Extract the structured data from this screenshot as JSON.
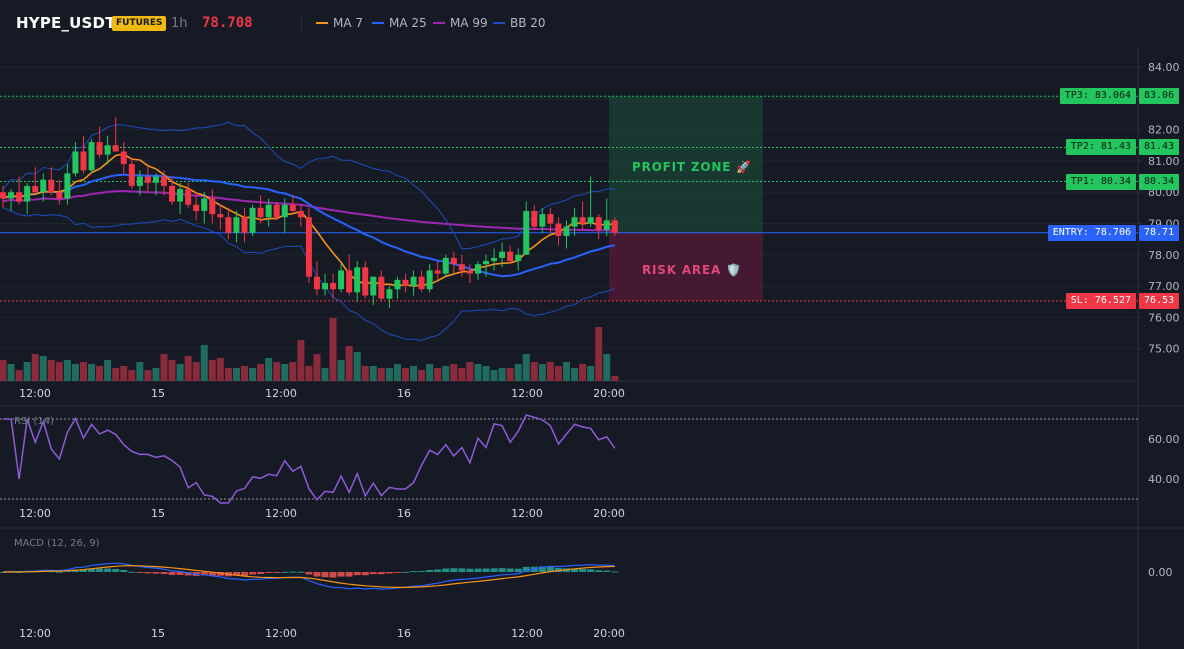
{
  "header": {
    "symbol": "HYPE_USDT",
    "market_badge": "FUTURES",
    "timeframe": "1h",
    "last_price": "78.708",
    "indicators": [
      {
        "label": "MA 7",
        "color": "#f7931a"
      },
      {
        "label": "MA 25",
        "color": "#2962ff"
      },
      {
        "label": "MA 99",
        "color": "#9c27b0"
      },
      {
        "label": "BB 20",
        "color": "#1e4bbf"
      }
    ]
  },
  "colors": {
    "up": "#22c55e",
    "down": "#f23645",
    "background": "#161a25",
    "grid": "#1f2430"
  },
  "levels": {
    "tp3": {
      "label": "TP3: 83.064",
      "axis": "83.06",
      "value": 83.064,
      "color": "#22c55e"
    },
    "tp2": {
      "label": "TP2: 81.43",
      "axis": "81.43",
      "value": 81.43,
      "color": "#22c55e"
    },
    "tp1": {
      "label": "TP1: 80.34",
      "axis": "80.34",
      "value": 80.34,
      "color": "#22c55e"
    },
    "entry": {
      "label": "ENTRY: 78.706",
      "axis": "78.71",
      "value": 78.706,
      "color": "#2962ff"
    },
    "sl": {
      "label": "SL: 76.527",
      "axis": "76.53",
      "value": 76.527,
      "color": "#f23645"
    }
  },
  "zones": {
    "profit": "PROFIT ZONE 🚀",
    "risk": "RISK AREA 🛡️"
  },
  "time_labels": [
    "12:00",
    "15",
    "12:00",
    "16",
    "12:00",
    "20:00"
  ],
  "rsi": {
    "title": "RSI (14)",
    "ticks": [
      "60.00",
      "40.00"
    ],
    "upper": 70,
    "lower": 30
  },
  "macd": {
    "title": "MACD (12, 26, 9)",
    "ticks": [
      "0.00"
    ]
  },
  "chart_data": {
    "type": "candlestick",
    "price_axis": {
      "ticks": [
        "84.00",
        "83.00",
        "82.00",
        "81.00",
        "80.00",
        "79.00",
        "78.00",
        "77.00",
        "76.00",
        "75.00"
      ],
      "range": [
        74.0,
        84.3
      ]
    },
    "candles": [
      [
        80.0,
        80.2,
        79.5,
        79.8
      ],
      [
        79.8,
        80.1,
        79.4,
        80.0
      ],
      [
        80.0,
        80.5,
        79.6,
        79.7
      ],
      [
        79.7,
        80.3,
        79.3,
        80.2
      ],
      [
        80.2,
        80.8,
        80.0,
        80.0
      ],
      [
        80.0,
        80.6,
        79.7,
        80.4
      ],
      [
        80.4,
        80.8,
        79.9,
        80.0
      ],
      [
        80.0,
        80.4,
        79.6,
        79.8
      ],
      [
        79.8,
        80.9,
        79.6,
        80.6
      ],
      [
        80.6,
        81.6,
        80.5,
        81.3
      ],
      [
        81.3,
        81.8,
        80.6,
        80.7
      ],
      [
        80.7,
        81.7,
        80.6,
        81.6
      ],
      [
        81.6,
        82.1,
        81.1,
        81.2
      ],
      [
        81.2,
        81.8,
        80.9,
        81.5
      ],
      [
        81.5,
        82.4,
        81.3,
        81.3
      ],
      [
        81.3,
        81.6,
        80.6,
        80.9
      ],
      [
        80.9,
        81.1,
        80.1,
        80.2
      ],
      [
        80.2,
        80.7,
        79.9,
        80.5
      ],
      [
        80.5,
        80.8,
        80.0,
        80.3
      ],
      [
        80.3,
        80.6,
        79.9,
        80.5
      ],
      [
        80.5,
        80.7,
        79.9,
        80.2
      ],
      [
        80.2,
        80.5,
        79.6,
        79.7
      ],
      [
        79.7,
        80.3,
        79.3,
        80.1
      ],
      [
        80.1,
        80.3,
        79.5,
        79.6
      ],
      [
        79.6,
        80.0,
        79.1,
        79.4
      ],
      [
        79.4,
        80.0,
        79.0,
        79.8
      ],
      [
        79.8,
        80.1,
        79.0,
        79.3
      ],
      [
        79.3,
        79.6,
        78.8,
        79.2
      ],
      [
        79.2,
        79.5,
        78.5,
        78.7
      ],
      [
        78.7,
        79.4,
        78.4,
        79.2
      ],
      [
        79.2,
        79.5,
        78.4,
        78.7
      ],
      [
        78.7,
        79.6,
        78.6,
        79.5
      ],
      [
        79.5,
        79.9,
        79.0,
        79.2
      ],
      [
        79.2,
        79.8,
        78.9,
        79.6
      ],
      [
        79.6,
        79.7,
        79.1,
        79.2
      ],
      [
        79.2,
        79.8,
        78.7,
        79.6
      ],
      [
        79.6,
        79.9,
        79.3,
        79.4
      ],
      [
        79.4,
        79.6,
        78.9,
        79.2
      ],
      [
        79.2,
        79.5,
        77.1,
        77.3
      ],
      [
        77.3,
        77.8,
        76.7,
        76.9
      ],
      [
        76.9,
        77.4,
        76.7,
        77.1
      ],
      [
        77.1,
        77.4,
        76.6,
        76.9
      ],
      [
        76.9,
        77.7,
        76.8,
        77.5
      ],
      [
        77.5,
        78.0,
        76.7,
        76.8
      ],
      [
        76.8,
        77.8,
        76.5,
        77.6
      ],
      [
        77.6,
        77.8,
        76.6,
        76.7
      ],
      [
        76.7,
        77.3,
        76.4,
        77.3
      ],
      [
        77.3,
        77.5,
        76.5,
        76.6
      ],
      [
        76.6,
        77.0,
        76.3,
        76.9
      ],
      [
        76.9,
        77.3,
        76.6,
        77.2
      ],
      [
        77.2,
        77.4,
        76.8,
        77.0
      ],
      [
        77.0,
        77.5,
        76.7,
        77.3
      ],
      [
        77.3,
        77.5,
        76.8,
        76.9
      ],
      [
        76.9,
        77.7,
        76.8,
        77.5
      ],
      [
        77.5,
        77.8,
        77.2,
        77.4
      ],
      [
        77.4,
        78.0,
        77.3,
        77.9
      ],
      [
        77.9,
        78.1,
        77.4,
        77.7
      ],
      [
        77.7,
        78.0,
        77.3,
        77.5
      ],
      [
        77.5,
        77.7,
        77.1,
        77.4
      ],
      [
        77.4,
        77.8,
        77.2,
        77.7
      ],
      [
        77.7,
        78.0,
        77.3,
        77.8
      ],
      [
        77.8,
        78.2,
        77.5,
        77.9
      ],
      [
        77.9,
        78.4,
        77.6,
        78.1
      ],
      [
        78.1,
        78.3,
        77.7,
        77.8
      ],
      [
        77.8,
        78.2,
        77.5,
        78.0
      ],
      [
        78.0,
        79.7,
        78.0,
        79.4
      ],
      [
        79.4,
        79.6,
        78.8,
        78.9
      ],
      [
        78.9,
        79.5,
        78.7,
        79.3
      ],
      [
        79.3,
        79.5,
        78.7,
        79.0
      ],
      [
        79.0,
        79.2,
        78.3,
        78.6
      ],
      [
        78.6,
        79.1,
        78.2,
        78.9
      ],
      [
        78.9,
        79.5,
        78.6,
        79.2
      ],
      [
        79.2,
        79.7,
        78.8,
        79.0
      ],
      [
        79.0,
        80.5,
        78.9,
        79.2
      ],
      [
        79.2,
        79.3,
        78.5,
        78.8
      ],
      [
        78.8,
        79.8,
        78.6,
        79.1
      ],
      [
        79.1,
        79.2,
        78.6,
        78.7
      ]
    ],
    "volume": [
      21,
      17,
      11,
      19,
      27,
      25,
      21,
      19,
      21,
      17,
      19,
      17,
      15,
      21,
      13,
      15,
      11,
      19,
      11,
      13,
      27,
      21,
      17,
      25,
      19,
      36,
      21,
      23,
      13,
      13,
      15,
      13,
      17,
      23,
      19,
      17,
      19,
      41,
      15,
      27,
      13,
      63,
      21,
      35,
      29,
      15,
      15,
      13,
      13,
      17,
      13,
      15,
      11,
      17,
      13,
      15,
      17,
      13,
      19,
      17,
      15,
      11,
      13,
      13,
      17,
      27,
      19,
      17,
      19,
      15,
      19,
      13,
      17,
      15,
      54,
      27,
      5
    ]
  }
}
